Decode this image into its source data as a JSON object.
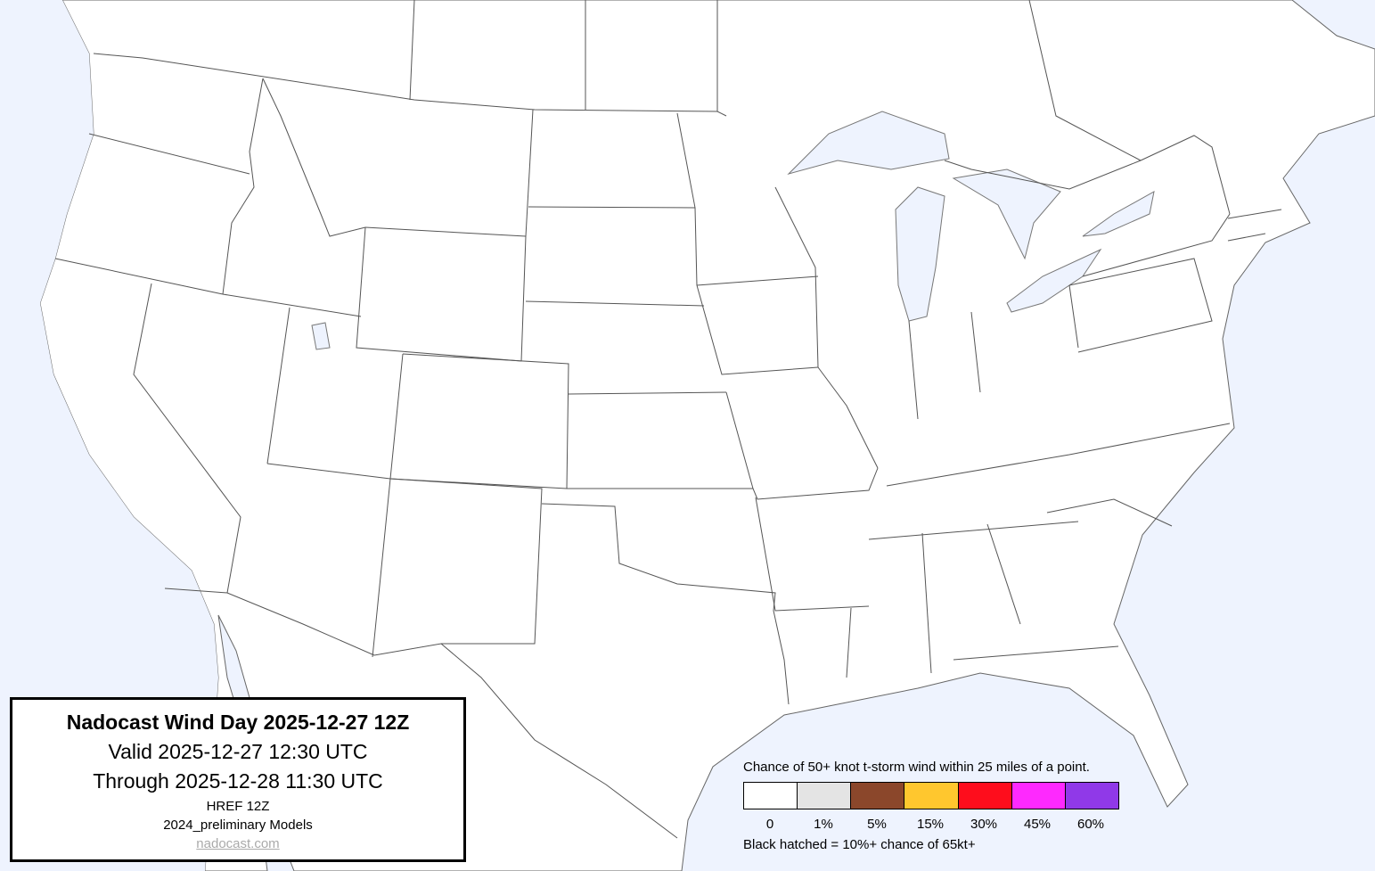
{
  "title_box": {
    "title": "Nadocast Wind Day 2025-12-27 12Z",
    "valid": "Valid 2025-12-27 12:30 UTC",
    "through": "Through 2025-12-28 11:30 UTC",
    "model": "HREF 12Z",
    "models_version": "2024_preliminary Models",
    "link": "nadocast.com"
  },
  "legend": {
    "title": "Chance of 50+ knot t-storm wind within 25 miles of a point.",
    "bins": [
      {
        "label": "0",
        "color": "#ffffff"
      },
      {
        "label": "1%",
        "color": "#e4e4e4"
      },
      {
        "label": "5%",
        "color": "#8b472b"
      },
      {
        "label": "15%",
        "color": "#ffc72e"
      },
      {
        "label": "30%",
        "color": "#fe0d1c"
      },
      {
        "label": "45%",
        "color": "#fe29fe"
      },
      {
        "label": "60%",
        "color": "#9039e8"
      }
    ],
    "footnote": "Black hatched = 10%+ chance of 65kt+"
  },
  "colors": {
    "water": "#eef3fe",
    "land": "#ffffff",
    "borders": "#555555"
  }
}
